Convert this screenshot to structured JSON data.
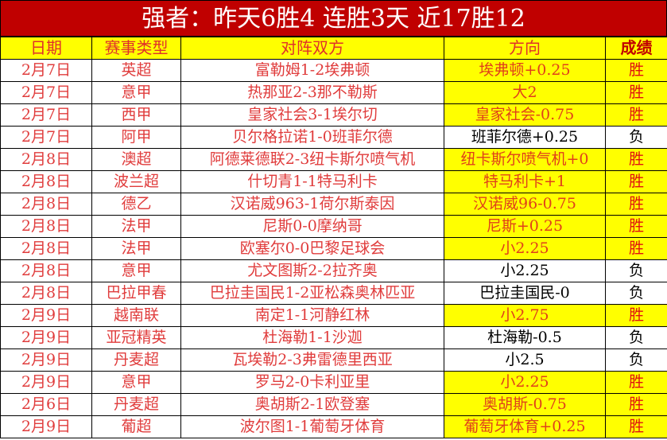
{
  "title": "强者：昨天6胜4 连胜3天 近17胜12",
  "colors": {
    "title_bg": "#C00000",
    "highlight": "#FFFF00",
    "text_red": "#E03C3C"
  },
  "headers": [
    "日期",
    "赛事类型",
    "对阵双方",
    "方向",
    "成绩"
  ],
  "rows": [
    {
      "date": "2月7日",
      "league": "英超",
      "match": "富勒姆1-2埃弗顿",
      "pick": "埃弗顿+0.25",
      "result": "胜"
    },
    {
      "date": "2月7日",
      "league": "意甲",
      "match": "热那亚2-3那不勒斯",
      "pick": "大2",
      "result": "胜"
    },
    {
      "date": "2月7日",
      "league": "西甲",
      "match": "皇家社会3-1埃尔切",
      "pick": "皇家社会-0.75",
      "result": "胜"
    },
    {
      "date": "2月7日",
      "league": "阿甲",
      "match": "贝尔格拉诺1-0班菲尔德",
      "pick": "班菲尔德+0.25",
      "result": "负"
    },
    {
      "date": "2月8日",
      "league": "澳超",
      "match": "阿德莱德联2-3纽卡斯尔喷气机",
      "pick": "纽卡斯尔喷气机+0",
      "result": "胜"
    },
    {
      "date": "2月8日",
      "league": "波兰超",
      "match": "什切青1-1特马利卡",
      "pick": "特马利卡+1",
      "result": "胜"
    },
    {
      "date": "2月8日",
      "league": "德乙",
      "match": "汉诺威963-1荷尔斯泰因",
      "pick": "汉诺威96-0.75",
      "result": "胜"
    },
    {
      "date": "2月8日",
      "league": "法甲",
      "match": "尼斯0-0摩纳哥",
      "pick": "尼斯+0.25",
      "result": "胜"
    },
    {
      "date": "2月8日",
      "league": "法甲",
      "match": "欧塞尔0-0巴黎足球会",
      "pick": "小2.25",
      "result": "胜"
    },
    {
      "date": "2月8日",
      "league": "意甲",
      "match": "尤文图斯2-2拉齐奥",
      "pick": "小2.25",
      "result": "负"
    },
    {
      "date": "2月8日",
      "league": "巴拉甲春",
      "match": "巴拉圭国民1-2亚松森奥林匹亚",
      "pick": "巴拉圭国民-0",
      "result": "负"
    },
    {
      "date": "2月9日",
      "league": "越南联",
      "match": "南定1-1河静红林",
      "pick": "小2.75",
      "result": "胜"
    },
    {
      "date": "2月9日",
      "league": "亚冠精英",
      "match": "杜海勒1-1沙迦",
      "pick": "杜海勒-0.5",
      "result": "负"
    },
    {
      "date": "2月9日",
      "league": "丹麦超",
      "match": "瓦埃勒2-3弗雷德里西亚",
      "pick": "小2.5",
      "result": "负"
    },
    {
      "date": "2月9日",
      "league": "意甲",
      "match": "罗马2-0卡利亚里",
      "pick": "小2.25",
      "result": "胜"
    },
    {
      "date": "2月6日",
      "league": "丹麦超",
      "match": "奥胡斯2-1欧登塞",
      "pick": "奥胡斯-0.75",
      "result": "胜"
    },
    {
      "date": "2月9日",
      "league": "葡超",
      "match": "波尔图1-1葡萄牙体育",
      "pick": "葡萄牙体育+0.25",
      "result": "胜"
    }
  ]
}
